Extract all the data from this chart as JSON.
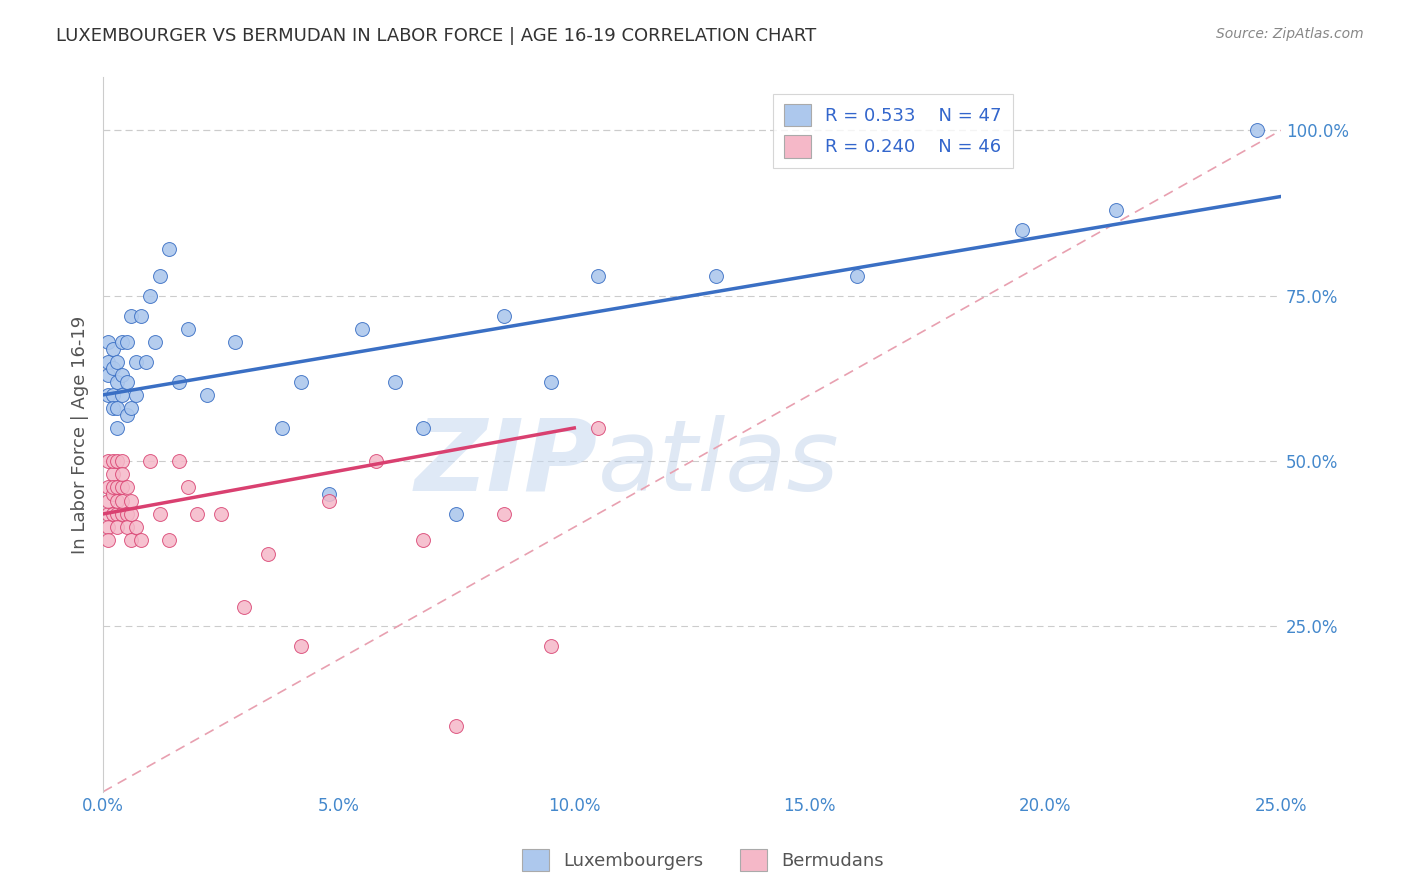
{
  "title": "LUXEMBOURGER VS BERMUDAN IN LABOR FORCE | AGE 16-19 CORRELATION CHART",
  "source": "Source: ZipAtlas.com",
  "ylabel": "In Labor Force | Age 16-19",
  "xlim": [
    0.0,
    0.25
  ],
  "ylim": [
    0.0,
    1.08
  ],
  "xtick_labels": [
    "0.0%",
    "5.0%",
    "10.0%",
    "15.0%",
    "20.0%",
    "25.0%"
  ],
  "xtick_vals": [
    0.0,
    0.05,
    0.1,
    0.15,
    0.2,
    0.25
  ],
  "ytick_labels": [
    "25.0%",
    "50.0%",
    "75.0%",
    "100.0%"
  ],
  "ytick_vals": [
    0.25,
    0.5,
    0.75,
    1.0
  ],
  "blue_color": "#adc8ed",
  "pink_color": "#f5b8c8",
  "blue_line_color": "#3a6fc4",
  "pink_line_color": "#d94070",
  "ref_line_color": "#ccbbcc",
  "legend_R1": "R = 0.533",
  "legend_N1": "N = 47",
  "legend_R2": "R = 0.240",
  "legend_N2": "N = 46",
  "watermark_zip": "ZIP",
  "watermark_atlas": "atlas",
  "blue_x": [
    0.001,
    0.001,
    0.001,
    0.001,
    0.002,
    0.002,
    0.002,
    0.002,
    0.003,
    0.003,
    0.003,
    0.003,
    0.004,
    0.004,
    0.004,
    0.005,
    0.005,
    0.005,
    0.006,
    0.006,
    0.007,
    0.007,
    0.008,
    0.009,
    0.01,
    0.011,
    0.012,
    0.014,
    0.016,
    0.018,
    0.022,
    0.028,
    0.038,
    0.042,
    0.048,
    0.055,
    0.062,
    0.068,
    0.075,
    0.085,
    0.095,
    0.105,
    0.13,
    0.16,
    0.195,
    0.215,
    0.245
  ],
  "blue_y": [
    0.63,
    0.65,
    0.6,
    0.68,
    0.6,
    0.64,
    0.67,
    0.58,
    0.62,
    0.58,
    0.65,
    0.55,
    0.6,
    0.63,
    0.68,
    0.57,
    0.62,
    0.68,
    0.58,
    0.72,
    0.6,
    0.65,
    0.72,
    0.65,
    0.75,
    0.68,
    0.78,
    0.82,
    0.62,
    0.7,
    0.6,
    0.68,
    0.55,
    0.62,
    0.45,
    0.7,
    0.62,
    0.55,
    0.42,
    0.72,
    0.62,
    0.78,
    0.78,
    0.78,
    0.85,
    0.88,
    1.0
  ],
  "pink_x": [
    0.001,
    0.001,
    0.001,
    0.001,
    0.001,
    0.001,
    0.002,
    0.002,
    0.002,
    0.002,
    0.002,
    0.003,
    0.003,
    0.003,
    0.003,
    0.003,
    0.004,
    0.004,
    0.004,
    0.004,
    0.004,
    0.005,
    0.005,
    0.005,
    0.006,
    0.006,
    0.006,
    0.007,
    0.008,
    0.01,
    0.012,
    0.014,
    0.016,
    0.018,
    0.02,
    0.025,
    0.03,
    0.035,
    0.042,
    0.048,
    0.058,
    0.068,
    0.075,
    0.085,
    0.095,
    0.105
  ],
  "pink_y": [
    0.42,
    0.46,
    0.5,
    0.44,
    0.4,
    0.38,
    0.45,
    0.48,
    0.42,
    0.46,
    0.5,
    0.42,
    0.46,
    0.44,
    0.4,
    0.5,
    0.42,
    0.46,
    0.44,
    0.5,
    0.48,
    0.42,
    0.46,
    0.4,
    0.38,
    0.42,
    0.44,
    0.4,
    0.38,
    0.5,
    0.42,
    0.38,
    0.5,
    0.46,
    0.42,
    0.42,
    0.28,
    0.36,
    0.22,
    0.44,
    0.5,
    0.38,
    0.1,
    0.42,
    0.22,
    0.55
  ]
}
